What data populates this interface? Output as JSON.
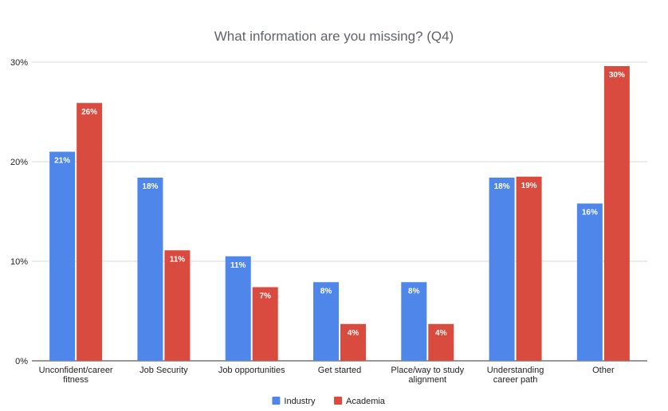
{
  "chart_data": {
    "type": "bar",
    "title": "What information are you missing? (Q4)",
    "categories": [
      [
        "Unconfident/career",
        "fitness"
      ],
      [
        "Job Security"
      ],
      [
        "Job opportunities"
      ],
      [
        "Get started"
      ],
      [
        "Place/way to study",
        "alignment"
      ],
      [
        "Understanding",
        "career path"
      ],
      [
        "Other"
      ]
    ],
    "series": [
      {
        "name": "Industry",
        "color": "#4e86ea",
        "values": [
          21,
          18.4,
          10.5,
          7.9,
          7.9,
          18.4,
          15.8
        ],
        "labels": [
          "21%",
          "18%",
          "11%",
          "8%",
          "8%",
          "18%",
          "16%"
        ]
      },
      {
        "name": "Academia",
        "color": "#d84b3e",
        "values": [
          25.9,
          11.1,
          7.4,
          3.7,
          3.7,
          18.5,
          29.6
        ],
        "labels": [
          "26%",
          "11%",
          "7%",
          "4%",
          "4%",
          "19%",
          "30%"
        ]
      }
    ],
    "y_ticks": [
      {
        "value": 0,
        "label": "0%"
      },
      {
        "value": 10,
        "label": "10%"
      },
      {
        "value": 20,
        "label": "20%"
      },
      {
        "value": 30,
        "label": "30%"
      }
    ],
    "ylim": [
      0,
      30
    ],
    "grid": true,
    "legend_position": "bottom"
  }
}
